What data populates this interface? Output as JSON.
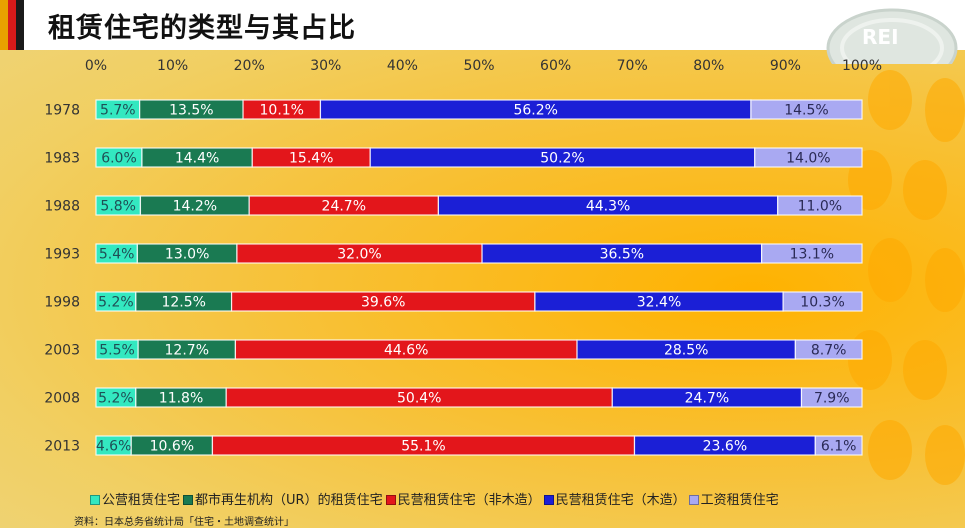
{
  "title": "租赁住宅的类型与其占比",
  "logo_text": "REI",
  "source": "资料：日本总务省统计局「住宅・土地调查统计」",
  "chart_data": {
    "type": "bar",
    "orientation": "horizontal",
    "stacked": "percent",
    "categories": [
      "1978",
      "1983",
      "1988",
      "1993",
      "1998",
      "2003",
      "2008",
      "2013"
    ],
    "x_ticks": [
      "0%",
      "10%",
      "20%",
      "30%",
      "40%",
      "50%",
      "60%",
      "70%",
      "80%",
      "90%",
      "100%"
    ],
    "xlim": [
      0,
      100
    ],
    "legend_position": "bottom",
    "series": [
      {
        "name": "公营租赁住宅",
        "color": "#33e8c0",
        "label_color": "#1f4f55",
        "values": [
          5.7,
          6.0,
          5.8,
          5.4,
          5.2,
          5.5,
          5.2,
          4.6
        ],
        "labels": [
          "5.7%",
          "6.0%",
          "5.8%",
          "5.4%",
          "5.2%",
          "5.5%",
          "5.2%",
          "4.6%"
        ]
      },
      {
        "name": "都市再生机构（UR）的租赁住宅",
        "color": "#1a7a52",
        "label_color": "#ffffff",
        "values": [
          13.5,
          14.4,
          14.2,
          13.0,
          12.5,
          12.7,
          11.8,
          10.6
        ],
        "labels": [
          "13.5%",
          "14.4%",
          "14.2%",
          "13.0%",
          "12.5%",
          "12.7%",
          "11.8%",
          "10.6%"
        ]
      },
      {
        "name": "民营租赁住宅（非木造）",
        "color": "#e3161b",
        "label_color": "#ffffff",
        "values": [
          10.1,
          15.4,
          24.7,
          32.0,
          39.6,
          44.6,
          50.4,
          55.1
        ],
        "labels": [
          "10.1%",
          "15.4%",
          "24.7%",
          "32.0%",
          "39.6%",
          "44.6%",
          "50.4%",
          "55.1%"
        ]
      },
      {
        "name": "民营租赁住宅（木造）",
        "color": "#1b1fd6",
        "label_color": "#ffffff",
        "values": [
          56.2,
          50.2,
          44.3,
          36.5,
          32.4,
          28.5,
          24.7,
          23.6
        ],
        "labels": [
          "56.2%",
          "50.2%",
          "44.3%",
          "36.5%",
          "32.4%",
          "28.5%",
          "24.7%",
          "23.6%"
        ]
      },
      {
        "name": "工资租赁住宅",
        "color": "#a9a9f2",
        "label_color": "#2a2a55",
        "values": [
          14.5,
          14.0,
          11.0,
          13.1,
          10.3,
          8.7,
          7.9,
          6.1
        ],
        "labels": [
          "14.5%",
          "14.0%",
          "11.0%",
          "13.1%",
          "10.3%",
          "8.7%",
          "7.9%",
          "6.1%"
        ]
      }
    ]
  }
}
